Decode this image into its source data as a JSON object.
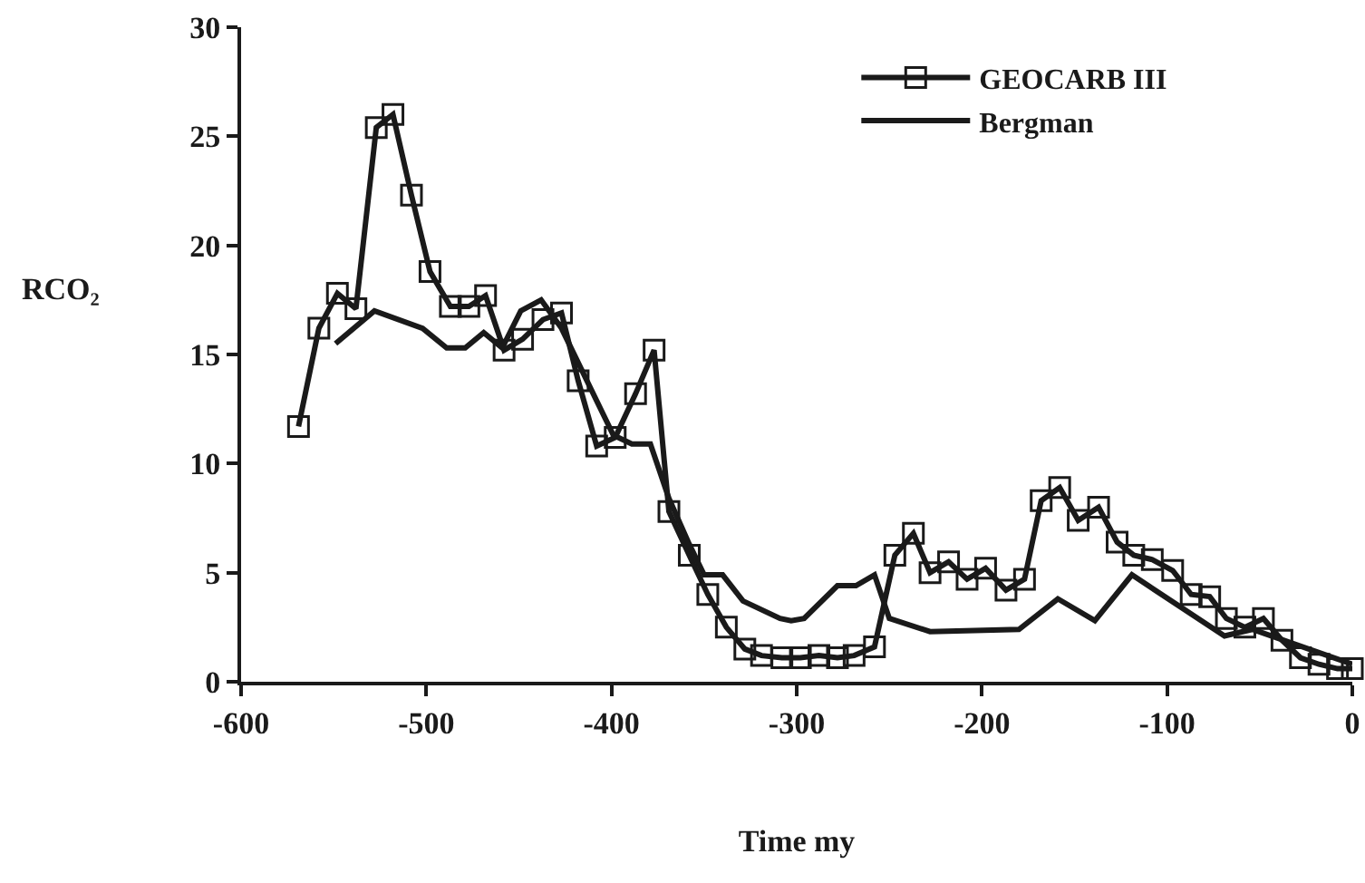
{
  "chart_data": {
    "type": "line",
    "xlabel": "Time my",
    "ylabel": "RCO₂",
    "xlim": [
      -600,
      0
    ],
    "xticks": [
      -600,
      -500,
      -400,
      -300,
      -200,
      -100,
      0
    ],
    "ylim": [
      0,
      30
    ],
    "yticks": [
      0,
      5,
      10,
      15,
      20,
      25,
      30
    ],
    "grid": false,
    "legend": "top right",
    "series": [
      {
        "name": "GEOCARB III",
        "color": "#1a1a1a",
        "marker": "square",
        "x": [
          -569,
          -558,
          -548,
          -538,
          -527,
          -518,
          -508,
          -498,
          -487,
          -477,
          -468,
          -458,
          -448,
          -437,
          -427,
          -418,
          -408,
          -398,
          -387,
          -377,
          -369,
          -358,
          -348,
          -338,
          -328,
          -319,
          -308,
          -298,
          -288,
          -278,
          -269,
          -258,
          -247,
          -237,
          -228,
          -218,
          -208,
          -198,
          -187,
          -177,
          -168,
          -158,
          -148,
          -137,
          -127,
          -118,
          -108,
          -97,
          -87,
          -77,
          -68,
          -58,
          -48,
          -38,
          -28,
          -18,
          -8,
          0
        ],
        "values": [
          11.7,
          16.2,
          17.8,
          17.1,
          25.4,
          26.0,
          22.3,
          18.8,
          17.2,
          17.2,
          17.7,
          15.2,
          15.7,
          16.6,
          16.9,
          13.8,
          10.8,
          11.2,
          13.2,
          15.2,
          7.8,
          5.8,
          4.0,
          2.5,
          1.5,
          1.2,
          1.1,
          1.1,
          1.2,
          1.1,
          1.2,
          1.6,
          5.8,
          6.8,
          5.0,
          5.5,
          4.7,
          5.2,
          4.2,
          4.7,
          8.3,
          8.9,
          7.4,
          8.0,
          6.4,
          5.8,
          5.6,
          5.1,
          4.0,
          3.9,
          2.9,
          2.5,
          2.9,
          1.9,
          1.1,
          0.8,
          0.6,
          0.6
        ]
      },
      {
        "name": "Bergman",
        "color": "#1a1a1a",
        "marker": "none",
        "x": [
          -549,
          -528,
          -502,
          -489,
          -479,
          -469,
          -459,
          -449,
          -438,
          -427,
          -399,
          -389,
          -379,
          -369,
          -358,
          -350,
          -340,
          -329,
          -309,
          -303,
          -296,
          -278,
          -268,
          -258,
          -250,
          -228,
          -180,
          -159,
          -139,
          -119,
          -69,
          -54,
          0
        ],
        "values": [
          15.5,
          17.0,
          16.2,
          15.3,
          15.3,
          16.0,
          15.3,
          17.0,
          17.5,
          16.2,
          11.3,
          10.9,
          10.9,
          8.4,
          6.3,
          4.9,
          4.9,
          3.7,
          2.9,
          2.8,
          2.9,
          4.4,
          4.4,
          4.9,
          2.9,
          2.3,
          2.4,
          3.8,
          2.8,
          4.9,
          2.1,
          2.4,
          0.8
        ]
      }
    ]
  }
}
